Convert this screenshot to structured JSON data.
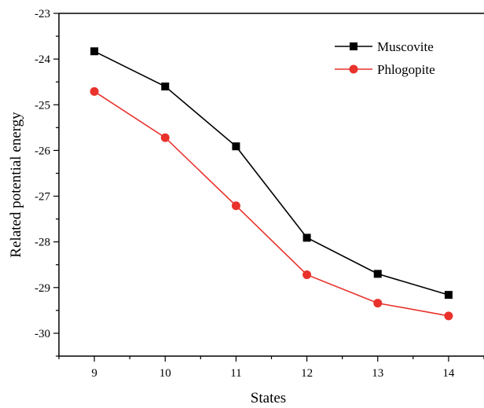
{
  "chart_data": {
    "type": "line",
    "title": "",
    "xlabel": "States",
    "ylabel": "Related potential energy",
    "x": [
      9,
      10,
      11,
      12,
      13,
      14
    ],
    "xlim": [
      8.5,
      14.5
    ],
    "ylim": [
      -30.5,
      -23
    ],
    "xticks": [
      "9",
      "10",
      "11",
      "12",
      "13",
      "14"
    ],
    "yticks": [
      "-23",
      "-24",
      "-25",
      "-26",
      "-27",
      "-28",
      "-29",
      "-30"
    ],
    "grid": false,
    "legend_position": "top-right",
    "series": [
      {
        "name": "Muscovite",
        "color": "#000000",
        "marker": "square",
        "values": [
          -23.83,
          -24.6,
          -25.91,
          -27.91,
          -28.7,
          -29.16
        ]
      },
      {
        "name": "Phlogopite",
        "color": "#e8322b",
        "marker": "circle",
        "values": [
          -24.71,
          -25.72,
          -27.21,
          -28.72,
          -29.34,
          -29.62
        ]
      }
    ]
  }
}
